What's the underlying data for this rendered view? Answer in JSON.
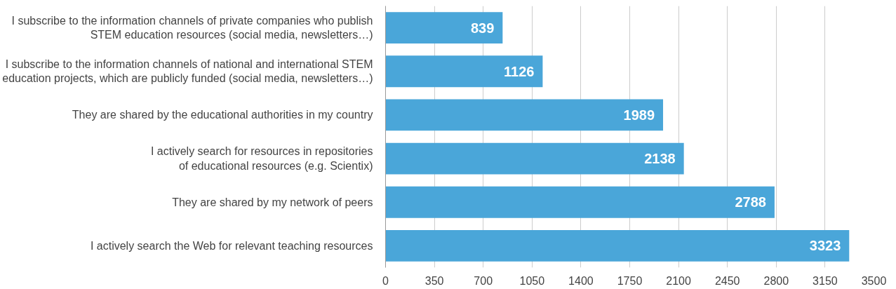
{
  "chart_data": {
    "type": "bar",
    "orientation": "horizontal",
    "data_labels": true,
    "grid": "x",
    "categories": [
      "I subscribe to the information channels of private companies who publish\nSTEM education resources (social media, newsletters…)",
      "I subscribe to the information channels of national and international STEM\neducation projects, which are publicly funded (social media, newsletters…)",
      "They are shared by the educational authorities in my country",
      "I actively search for resources in repositories\nof educational resources (e.g. Scientix)",
      "They are shared by my network of peers",
      "I actively search the Web for relevant teaching resources"
    ],
    "values": [
      839,
      1126,
      1989,
      2138,
      2788,
      3323
    ],
    "color": "#4aa6d9",
    "xlim": [
      0,
      3500
    ],
    "xticks": [
      0,
      350,
      700,
      1050,
      1400,
      1750,
      2100,
      2450,
      2800,
      3150,
      3500
    ]
  }
}
